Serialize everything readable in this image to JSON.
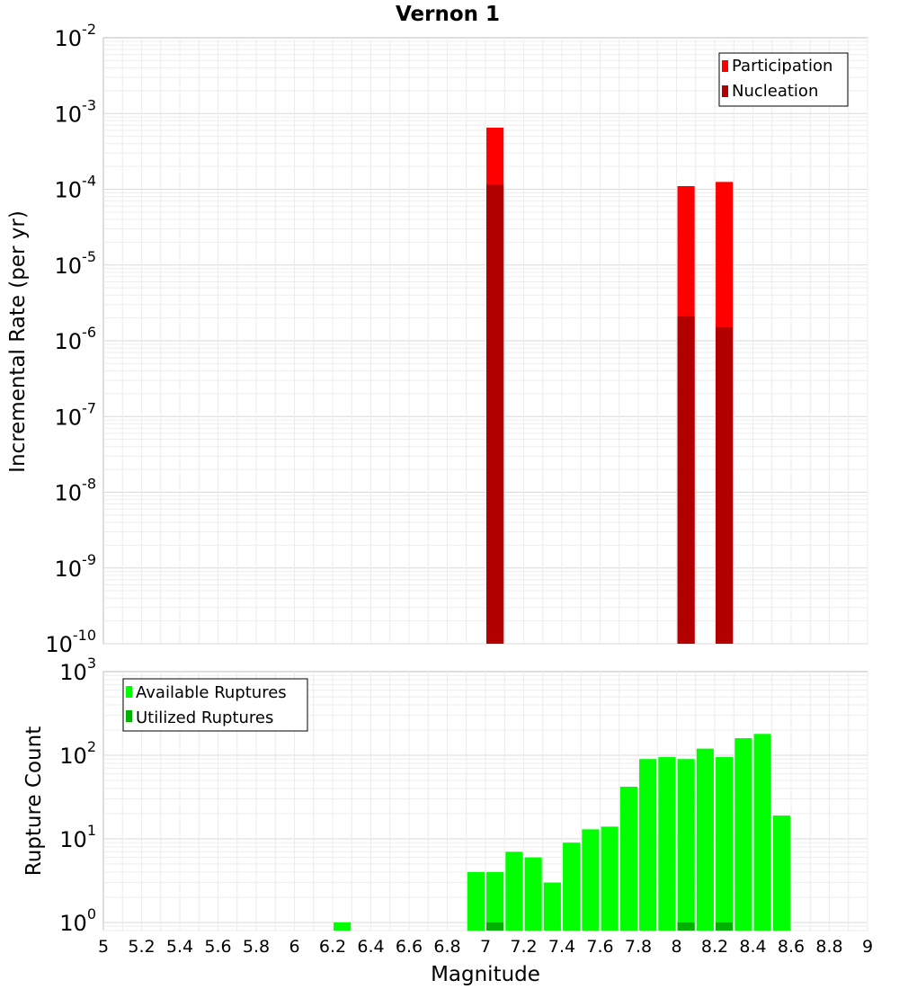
{
  "chart_data": [
    {
      "type": "bar",
      "title": "Vernon 1",
      "ylabel": "Incremental Rate (per yr)",
      "xlim": [
        5,
        9
      ],
      "ylim": [
        1e-10,
        0.01
      ],
      "yscale": "log",
      "grid": true,
      "legend": "top-right",
      "bar_width": 0.09,
      "x": [
        7.05,
        8.05,
        8.25
      ],
      "series": [
        {
          "name": "Participation",
          "color": "#ff0000",
          "values": [
            0.00065,
            0.00011,
            0.000125
          ]
        },
        {
          "name": "Nucleation",
          "color": "#b20000",
          "values": [
            0.000115,
            2.1e-06,
            1.5e-06
          ]
        }
      ]
    },
    {
      "type": "bar",
      "xlabel": "Magnitude",
      "ylabel": "Rupture Count",
      "xlim": [
        5,
        9
      ],
      "ylim": [
        0.8,
        1000
      ],
      "yscale": "log",
      "grid": true,
      "legend": "top-left",
      "bar_width": 0.09,
      "x": [
        6.25,
        6.95,
        7.05,
        7.15,
        7.25,
        7.35,
        7.45,
        7.55,
        7.65,
        7.75,
        7.85,
        7.95,
        8.05,
        8.15,
        8.25,
        8.35,
        8.45,
        8.55
      ],
      "series": [
        {
          "name": "Available Ruptures",
          "color": "#00ff00",
          "values": [
            1,
            4,
            4,
            7,
            6,
            3,
            9,
            13,
            14,
            42,
            90,
            95,
            90,
            120,
            95,
            160,
            180,
            19
          ]
        },
        {
          "name": "Utilized Ruptures",
          "color": "#00b200",
          "values": [
            0,
            0,
            1,
            0,
            0,
            0,
            0,
            0,
            0,
            0,
            0,
            0,
            1,
            0,
            1,
            0,
            0,
            0
          ]
        }
      ]
    }
  ],
  "xticks": [
    "5",
    "5.2",
    "5.4",
    "5.6",
    "5.8",
    "6",
    "6.2",
    "6.4",
    "6.6",
    "6.8",
    "7",
    "7.2",
    "7.4",
    "7.6",
    "7.8",
    "8",
    "8.2",
    "8.4",
    "8.6",
    "8.8",
    "9"
  ],
  "top_yticks": [
    "-2",
    "-3",
    "-4",
    "-5",
    "-6",
    "-7",
    "-8",
    "-9",
    "-10"
  ],
  "bottom_yticks": [
    "3",
    "2",
    "1",
    "0"
  ],
  "ytick_base": "10"
}
